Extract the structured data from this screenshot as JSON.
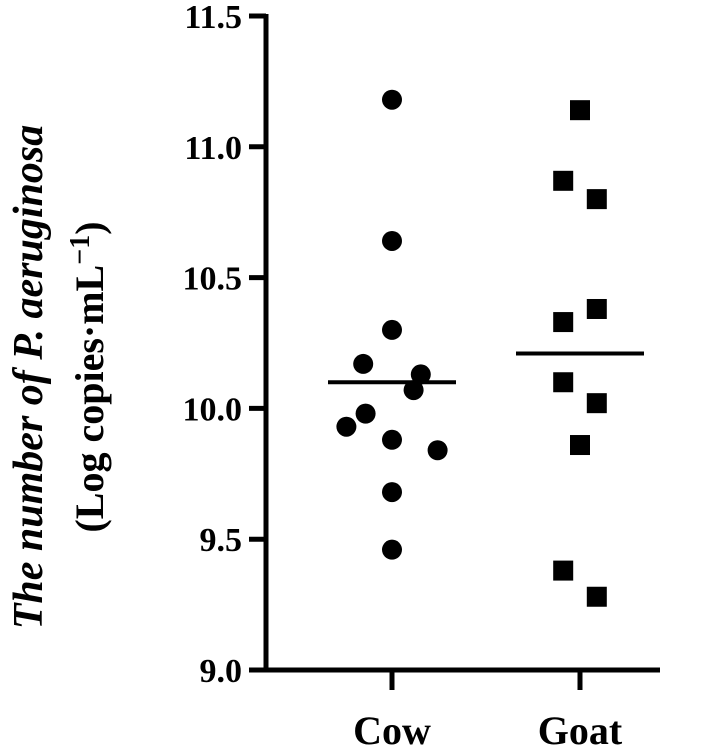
{
  "chart_data": {
    "type": "scatter",
    "ylabel_line1": "The number of P. aeruginosa",
    "ylabel_line2_prefix": "(Log copies·mL",
    "ylabel_line2_sup": "−1",
    "ylabel_line2_suffix": ")",
    "ylim": [
      9.0,
      11.5
    ],
    "yticks": [
      "9.0",
      "9.5",
      "10.0",
      "10.5",
      "11.0",
      "11.5"
    ],
    "categories": [
      "Cow",
      "Goat"
    ],
    "grid": false,
    "series": [
      {
        "category": "Cow",
        "marker": "circle",
        "values": [
          11.18,
          10.64,
          10.3,
          10.17,
          10.13,
          10.07,
          9.98,
          9.93,
          9.88,
          9.84,
          9.68,
          9.46
        ],
        "x_offsets": [
          0.0,
          0.0,
          0.0,
          -0.6,
          0.6,
          0.45,
          -0.55,
          -0.95,
          0.0,
          0.95,
          0.0,
          0.0
        ],
        "mean": 10.1
      },
      {
        "category": "Goat",
        "marker": "square",
        "values": [
          11.14,
          10.87,
          10.8,
          10.38,
          10.33,
          10.1,
          10.02,
          9.86,
          9.38,
          9.28
        ],
        "x_offsets": [
          0.0,
          -0.35,
          0.35,
          0.35,
          -0.35,
          -0.35,
          0.35,
          0.0,
          -0.35,
          0.35
        ],
        "mean": 10.21
      }
    ],
    "colors": {
      "marker": "#000000",
      "axis": "#000000"
    }
  }
}
